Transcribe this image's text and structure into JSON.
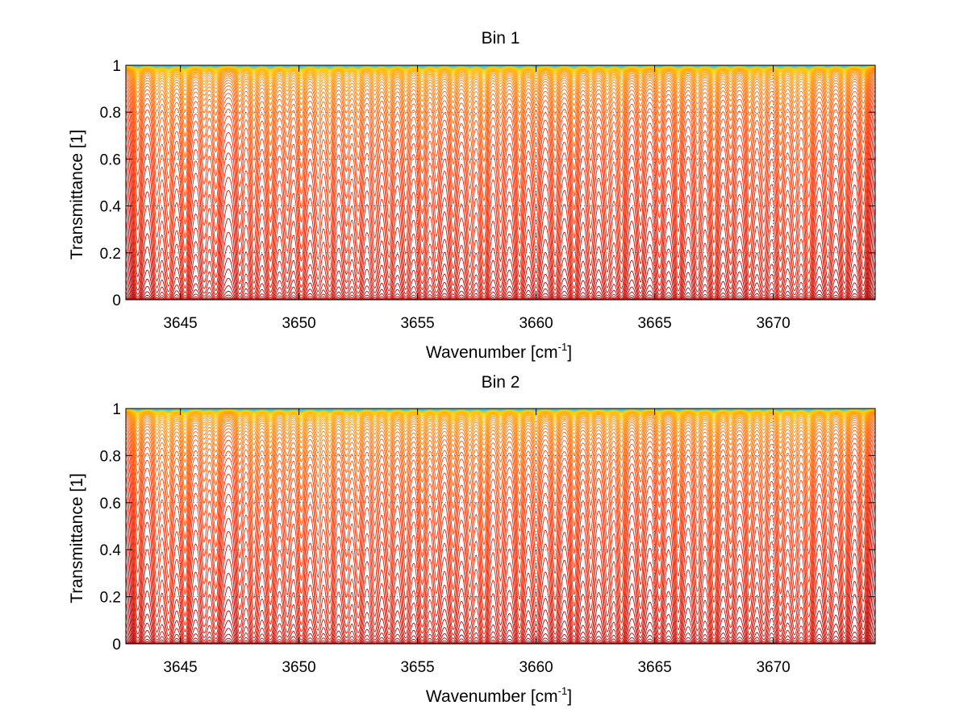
{
  "chart_data": [
    {
      "type": "line",
      "title": "Bin 1",
      "xlabel_main": "Wavenumber [cm",
      "xlabel_sup": "-1",
      "xlabel_tail": "]",
      "ylabel": "Transmittance [1]",
      "xlim": [
        3642.7,
        3674.3
      ],
      "ylim": [
        0,
        1
      ],
      "xticks": [
        3645,
        3650,
        3655,
        3660,
        3665,
        3670
      ],
      "yticks": [
        0,
        0.2,
        0.4,
        0.6,
        0.8,
        1
      ],
      "xtick_labels": [
        "3645",
        "3650",
        "3655",
        "3660",
        "3665",
        "3670"
      ],
      "ytick_labels": [
        "0",
        "0.2",
        "0.4",
        "0.6",
        "0.8",
        "1"
      ],
      "grid": true,
      "line_count": 60,
      "colormap": [
        "#8b0000",
        "#c00000",
        "#ff3000",
        "#ff8000",
        "#ffd000",
        "#22c0ff"
      ],
      "absorption_lines": [
        {
          "x": 3643.2,
          "depth": 0.75
        },
        {
          "x": 3644.0,
          "depth": 0.6
        },
        {
          "x": 3644.5,
          "depth": 0.85
        },
        {
          "x": 3645.2,
          "depth": 0.95
        },
        {
          "x": 3646.0,
          "depth": 0.5
        },
        {
          "x": 3646.5,
          "depth": 0.7
        },
        {
          "x": 3647.5,
          "depth": 0.55
        },
        {
          "x": 3648.1,
          "depth": 0.8
        },
        {
          "x": 3648.8,
          "depth": 0.9
        },
        {
          "x": 3649.5,
          "depth": 0.6
        },
        {
          "x": 3650.1,
          "depth": 0.9
        },
        {
          "x": 3650.8,
          "depth": 0.65
        },
        {
          "x": 3651.3,
          "depth": 0.85
        },
        {
          "x": 3652.0,
          "depth": 0.6
        },
        {
          "x": 3652.5,
          "depth": 0.75
        },
        {
          "x": 3653.2,
          "depth": 0.6
        },
        {
          "x": 3653.8,
          "depth": 0.7
        },
        {
          "x": 3654.5,
          "depth": 0.65
        },
        {
          "x": 3655.2,
          "depth": 0.8
        },
        {
          "x": 3655.8,
          "depth": 0.6
        },
        {
          "x": 3656.5,
          "depth": 0.7
        },
        {
          "x": 3657.2,
          "depth": 0.65
        },
        {
          "x": 3657.8,
          "depth": 1.0
        },
        {
          "x": 3658.5,
          "depth": 0.6
        },
        {
          "x": 3659.3,
          "depth": 0.85
        },
        {
          "x": 3660.0,
          "depth": 0.65
        },
        {
          "x": 3660.8,
          "depth": 0.7
        },
        {
          "x": 3661.6,
          "depth": 0.8
        },
        {
          "x": 3662.3,
          "depth": 0.55
        },
        {
          "x": 3663.0,
          "depth": 0.6
        },
        {
          "x": 3663.6,
          "depth": 0.8
        },
        {
          "x": 3664.4,
          "depth": 0.55
        },
        {
          "x": 3665.2,
          "depth": 0.6
        },
        {
          "x": 3666.0,
          "depth": 0.75
        },
        {
          "x": 3666.8,
          "depth": 0.6
        },
        {
          "x": 3667.5,
          "depth": 0.85
        },
        {
          "x": 3668.2,
          "depth": 0.55
        },
        {
          "x": 3669.0,
          "depth": 0.7
        },
        {
          "x": 3669.6,
          "depth": 0.6
        },
        {
          "x": 3670.3,
          "depth": 0.75
        },
        {
          "x": 3670.9,
          "depth": 0.65
        },
        {
          "x": 3671.5,
          "depth": 0.95
        },
        {
          "x": 3672.3,
          "depth": 0.6
        },
        {
          "x": 3673.0,
          "depth": 0.7
        },
        {
          "x": 3673.8,
          "depth": 0.55
        }
      ]
    },
    {
      "type": "line",
      "title": "Bin 2",
      "xlabel_main": "Wavenumber [cm",
      "xlabel_sup": "-1",
      "xlabel_tail": "]",
      "ylabel": "Transmittance [1]",
      "xlim": [
        3642.7,
        3674.3
      ],
      "ylim": [
        0,
        1
      ],
      "xticks": [
        3645,
        3650,
        3655,
        3660,
        3665,
        3670
      ],
      "yticks": [
        0,
        0.2,
        0.4,
        0.6,
        0.8,
        1
      ],
      "xtick_labels": [
        "3645",
        "3650",
        "3655",
        "3660",
        "3665",
        "3670"
      ],
      "ytick_labels": [
        "0",
        "0.2",
        "0.4",
        "0.6",
        "0.8",
        "1"
      ],
      "grid": true,
      "line_count": 60,
      "colormap": [
        "#8b0000",
        "#c00000",
        "#ff3000",
        "#ff8000",
        "#ffd000",
        "#22c0ff"
      ],
      "absorption_lines": [
        {
          "x": 3643.2,
          "depth": 0.75
        },
        {
          "x": 3644.0,
          "depth": 0.6
        },
        {
          "x": 3644.5,
          "depth": 0.85
        },
        {
          "x": 3645.2,
          "depth": 0.95
        },
        {
          "x": 3646.0,
          "depth": 0.5
        },
        {
          "x": 3646.5,
          "depth": 0.7
        },
        {
          "x": 3647.5,
          "depth": 0.55
        },
        {
          "x": 3648.1,
          "depth": 0.8
        },
        {
          "x": 3648.8,
          "depth": 0.9
        },
        {
          "x": 3649.5,
          "depth": 0.6
        },
        {
          "x": 3650.1,
          "depth": 0.9
        },
        {
          "x": 3650.8,
          "depth": 0.65
        },
        {
          "x": 3651.3,
          "depth": 0.85
        },
        {
          "x": 3652.0,
          "depth": 0.6
        },
        {
          "x": 3652.5,
          "depth": 0.75
        },
        {
          "x": 3653.2,
          "depth": 0.6
        },
        {
          "x": 3653.8,
          "depth": 0.7
        },
        {
          "x": 3654.5,
          "depth": 0.65
        },
        {
          "x": 3655.2,
          "depth": 0.8
        },
        {
          "x": 3655.8,
          "depth": 0.6
        },
        {
          "x": 3656.5,
          "depth": 0.7
        },
        {
          "x": 3657.2,
          "depth": 0.65
        },
        {
          "x": 3657.8,
          "depth": 1.0
        },
        {
          "x": 3658.5,
          "depth": 0.6
        },
        {
          "x": 3659.3,
          "depth": 0.85
        },
        {
          "x": 3660.0,
          "depth": 0.65
        },
        {
          "x": 3660.8,
          "depth": 0.7
        },
        {
          "x": 3661.6,
          "depth": 0.8
        },
        {
          "x": 3662.3,
          "depth": 0.55
        },
        {
          "x": 3663.0,
          "depth": 0.6
        },
        {
          "x": 3663.6,
          "depth": 0.9
        },
        {
          "x": 3664.4,
          "depth": 0.55
        },
        {
          "x": 3665.2,
          "depth": 0.6
        },
        {
          "x": 3666.0,
          "depth": 0.75
        },
        {
          "x": 3666.8,
          "depth": 0.6
        },
        {
          "x": 3667.5,
          "depth": 0.9
        },
        {
          "x": 3668.2,
          "depth": 0.55
        },
        {
          "x": 3669.0,
          "depth": 0.7
        },
        {
          "x": 3669.6,
          "depth": 0.6
        },
        {
          "x": 3670.3,
          "depth": 0.75
        },
        {
          "x": 3670.9,
          "depth": 0.65
        },
        {
          "x": 3671.5,
          "depth": 0.95
        },
        {
          "x": 3672.3,
          "depth": 0.6
        },
        {
          "x": 3673.0,
          "depth": 0.7
        },
        {
          "x": 3673.8,
          "depth": 0.55
        }
      ]
    }
  ]
}
